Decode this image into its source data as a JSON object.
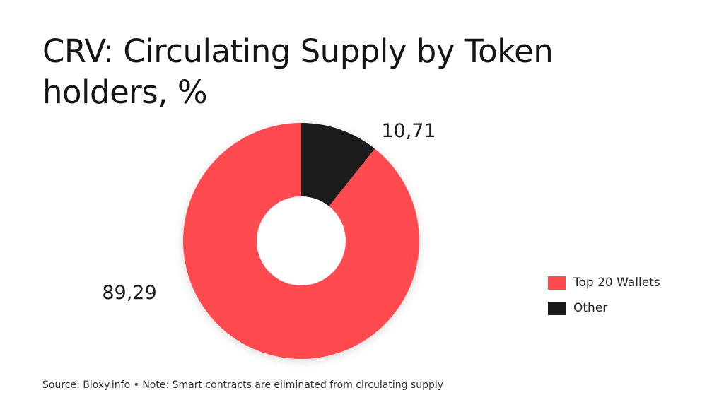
{
  "chart_data": {
    "type": "pie",
    "title": "CRV: Circulating Supply by Token holders, %",
    "categories": [
      "Top 20 Wallets",
      "Other"
    ],
    "values": [
      89.29,
      10.71
    ],
    "labels": [
      "89,29",
      "10,71"
    ],
    "colors": [
      "#ff4b4f",
      "#1a1a1a"
    ],
    "donut": true,
    "legend_position": "right",
    "source": "Source: Bloxy.info • Note: Smart contracts are eliminated from circulating supply"
  }
}
